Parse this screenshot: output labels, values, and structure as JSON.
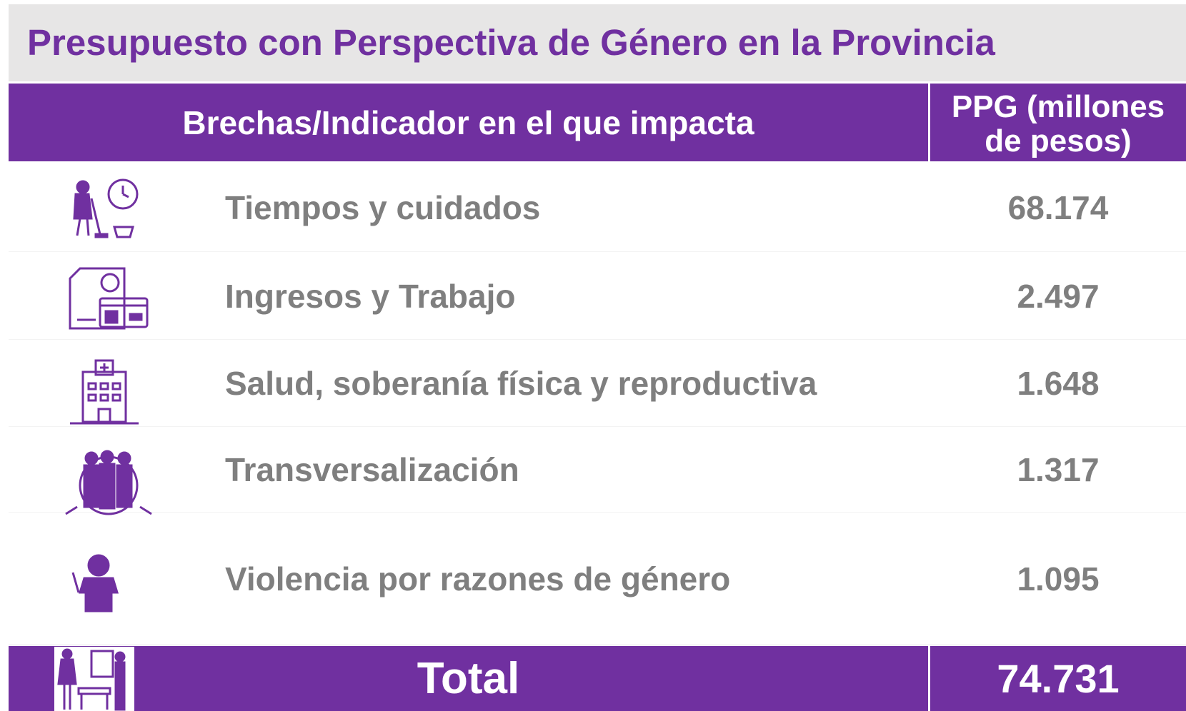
{
  "header": {
    "title": "Presupuesto con Perspectiva de Género en la Provincia"
  },
  "table": {
    "columns": [
      "Brechas/Indicador en el que impacta",
      "PPG (millones de pesos)"
    ],
    "rows": [
      [
        "Tiempos y cuidados",
        "68.174"
      ],
      [
        "Ingresos y Trabajo",
        "2.497"
      ],
      [
        "Salud, soberanía física y reproductiva",
        "1.648"
      ],
      [
        "Transversalización",
        "1.317"
      ],
      [
        "Violencia por razones de género",
        "1.095"
      ]
    ],
    "total": [
      "Total",
      "74.731"
    ]
  }
}
